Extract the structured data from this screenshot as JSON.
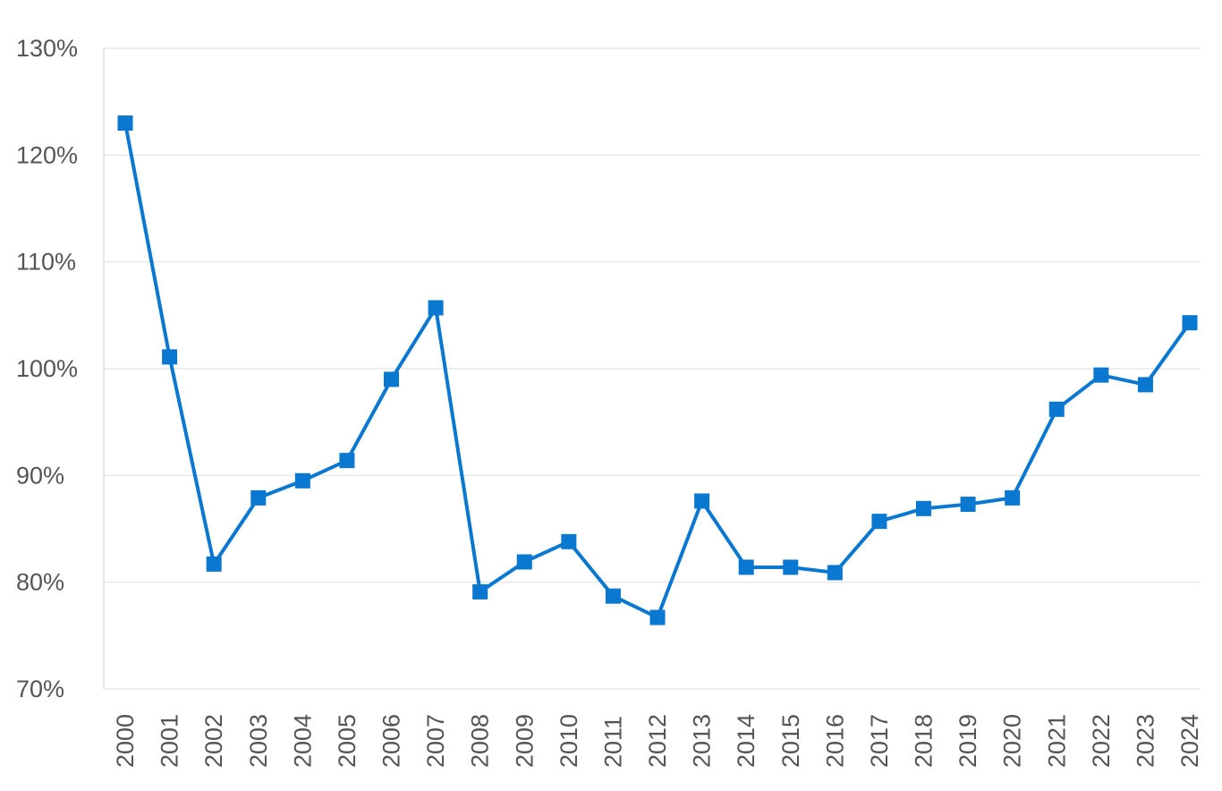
{
  "chart_data": {
    "type": "line",
    "title": "",
    "xlabel": "",
    "ylabel": "",
    "categories": [
      "2000",
      "2001",
      "2002",
      "2003",
      "2004",
      "2005",
      "2006",
      "2007",
      "2008",
      "2009",
      "2010",
      "2011",
      "2012",
      "2013",
      "2014",
      "2015",
      "2016",
      "2017",
      "2018",
      "2019",
      "2020",
      "2021",
      "2022",
      "2023",
      "2024"
    ],
    "series": [
      {
        "values": [
          123.0,
          101.1,
          81.7,
          87.9,
          89.5,
          91.4,
          99.0,
          105.7,
          79.1,
          81.9,
          83.8,
          78.7,
          76.7,
          87.6,
          81.4,
          81.4,
          80.9,
          85.7,
          86.9,
          87.3,
          87.9,
          96.2,
          99.4,
          98.5,
          104.3
        ],
        "color": "#0a77d0",
        "marker": "square"
      }
    ],
    "ylim": [
      70,
      130
    ],
    "yticks": [
      70,
      80,
      90,
      100,
      110,
      120,
      130
    ],
    "ytick_labels": [
      "70%",
      "80%",
      "90%",
      "100%",
      "110%",
      "120%",
      "130%"
    ],
    "grid": "horizontal",
    "legend": "none"
  }
}
